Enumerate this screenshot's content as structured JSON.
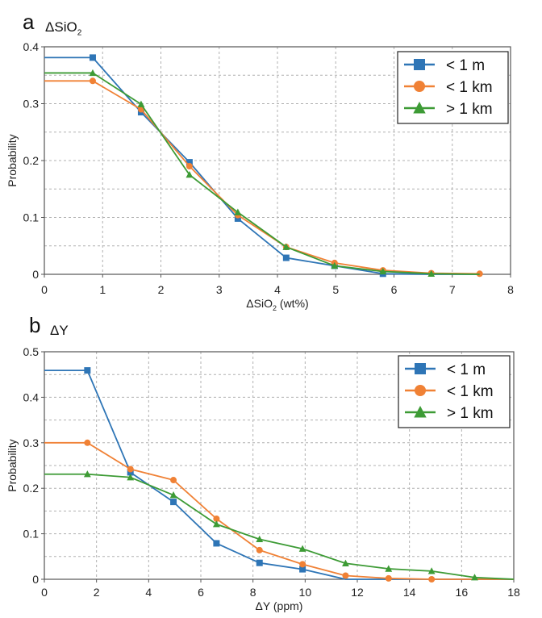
{
  "colors": {
    "blue": "#2e75b6",
    "orange": "#f08135",
    "green": "#3d9b35",
    "grid": "#b0b0b0",
    "frame": "#555555"
  },
  "chart_data": [
    {
      "type": "line",
      "panel": "a",
      "title": "ΔSiO",
      "title_sub": "2",
      "xlabel": "ΔSiO",
      "xlabel_sub": "2",
      "xlabel_suffix": " (wt%)",
      "ylabel": "Probability",
      "xlim": [
        0,
        8
      ],
      "ylim": [
        0,
        0.4
      ],
      "xticks": [
        0,
        1,
        2,
        3,
        4,
        5,
        6,
        7,
        8
      ],
      "yticks": [
        0,
        0.1,
        0.2,
        0.3,
        0.4
      ],
      "ytick_labels": [
        "0",
        "0.1",
        "0.2",
        "0.3",
        "0.4"
      ],
      "grid": true,
      "legend_position": "top-right",
      "series": [
        {
          "name": "< 1 m",
          "marker": "square",
          "color": "#2e75b6",
          "x": [
            0,
            0.83,
            1.66,
            2.49,
            3.32,
            4.15,
            4.98,
            5.81,
            6.64,
            7.47
          ],
          "y": [
            0.381,
            0.381,
            0.285,
            0.197,
            0.098,
            0.029,
            0.015,
            0.001,
            0.0,
            0.0
          ],
          "marker_idx": [
            1,
            2,
            3,
            4,
            5,
            6,
            7
          ]
        },
        {
          "name": "< 1 km",
          "marker": "circle",
          "color": "#f08135",
          "x": [
            0,
            0.83,
            1.66,
            2.49,
            3.32,
            4.15,
            4.98,
            5.81,
            6.64,
            7.47
          ],
          "y": [
            0.34,
            0.34,
            0.29,
            0.19,
            0.104,
            0.048,
            0.02,
            0.007,
            0.002,
            0.001
          ],
          "marker_idx": [
            1,
            2,
            3,
            4,
            5,
            6,
            7,
            8,
            9
          ]
        },
        {
          "name": "> 1 km",
          "marker": "triangle",
          "color": "#3d9b35",
          "x": [
            0,
            0.83,
            1.66,
            2.49,
            3.32,
            4.15,
            4.98,
            5.81,
            6.64,
            7.47
          ],
          "y": [
            0.354,
            0.354,
            0.299,
            0.175,
            0.109,
            0.048,
            0.015,
            0.005,
            0.001,
            0.0
          ],
          "marker_idx": [
            1,
            2,
            3,
            4,
            5,
            6,
            7,
            8
          ]
        }
      ]
    },
    {
      "type": "line",
      "panel": "b",
      "title": "ΔY",
      "xlabel": "ΔY (ppm)",
      "ylabel": "Probability",
      "xlim": [
        0,
        18
      ],
      "ylim": [
        0,
        0.5
      ],
      "xticks": [
        0,
        2,
        4,
        6,
        8,
        10,
        12,
        14,
        16,
        18
      ],
      "yticks": [
        0,
        0.1,
        0.2,
        0.3,
        0.4,
        0.5
      ],
      "ytick_labels": [
        "0",
        "0.1",
        "0.2",
        "0.3",
        "0.4",
        "0.5"
      ],
      "grid": true,
      "legend_position": "top-right",
      "series": [
        {
          "name": "< 1 m",
          "marker": "square",
          "color": "#2e75b6",
          "x": [
            0,
            1.65,
            3.3,
            4.95,
            6.6,
            8.25,
            9.9,
            11.55,
            13.2,
            14.85,
            16.5,
            18
          ],
          "y": [
            0.459,
            0.459,
            0.235,
            0.17,
            0.079,
            0.036,
            0.022,
            0.0,
            0.0,
            0.0,
            0.0,
            0.0
          ],
          "marker_idx": [
            1,
            2,
            3,
            4,
            5,
            6
          ]
        },
        {
          "name": "< 1 km",
          "marker": "circle",
          "color": "#f08135",
          "x": [
            0,
            1.65,
            3.3,
            4.95,
            6.6,
            8.25,
            9.9,
            11.55,
            13.2,
            14.85,
            16.5,
            18
          ],
          "y": [
            0.3,
            0.3,
            0.242,
            0.218,
            0.133,
            0.064,
            0.033,
            0.008,
            0.002,
            0.0,
            0.0,
            0.0
          ],
          "marker_idx": [
            1,
            2,
            3,
            4,
            5,
            6,
            7,
            8,
            9
          ]
        },
        {
          "name": "> 1 km",
          "marker": "triangle",
          "color": "#3d9b35",
          "x": [
            0,
            1.65,
            3.3,
            4.95,
            6.6,
            8.25,
            9.9,
            11.55,
            13.2,
            14.85,
            16.5,
            18
          ],
          "y": [
            0.231,
            0.231,
            0.224,
            0.185,
            0.121,
            0.088,
            0.067,
            0.035,
            0.023,
            0.018,
            0.004,
            0.0
          ],
          "marker_idx": [
            1,
            2,
            3,
            4,
            5,
            6,
            7,
            8,
            9,
            10
          ]
        }
      ]
    }
  ]
}
